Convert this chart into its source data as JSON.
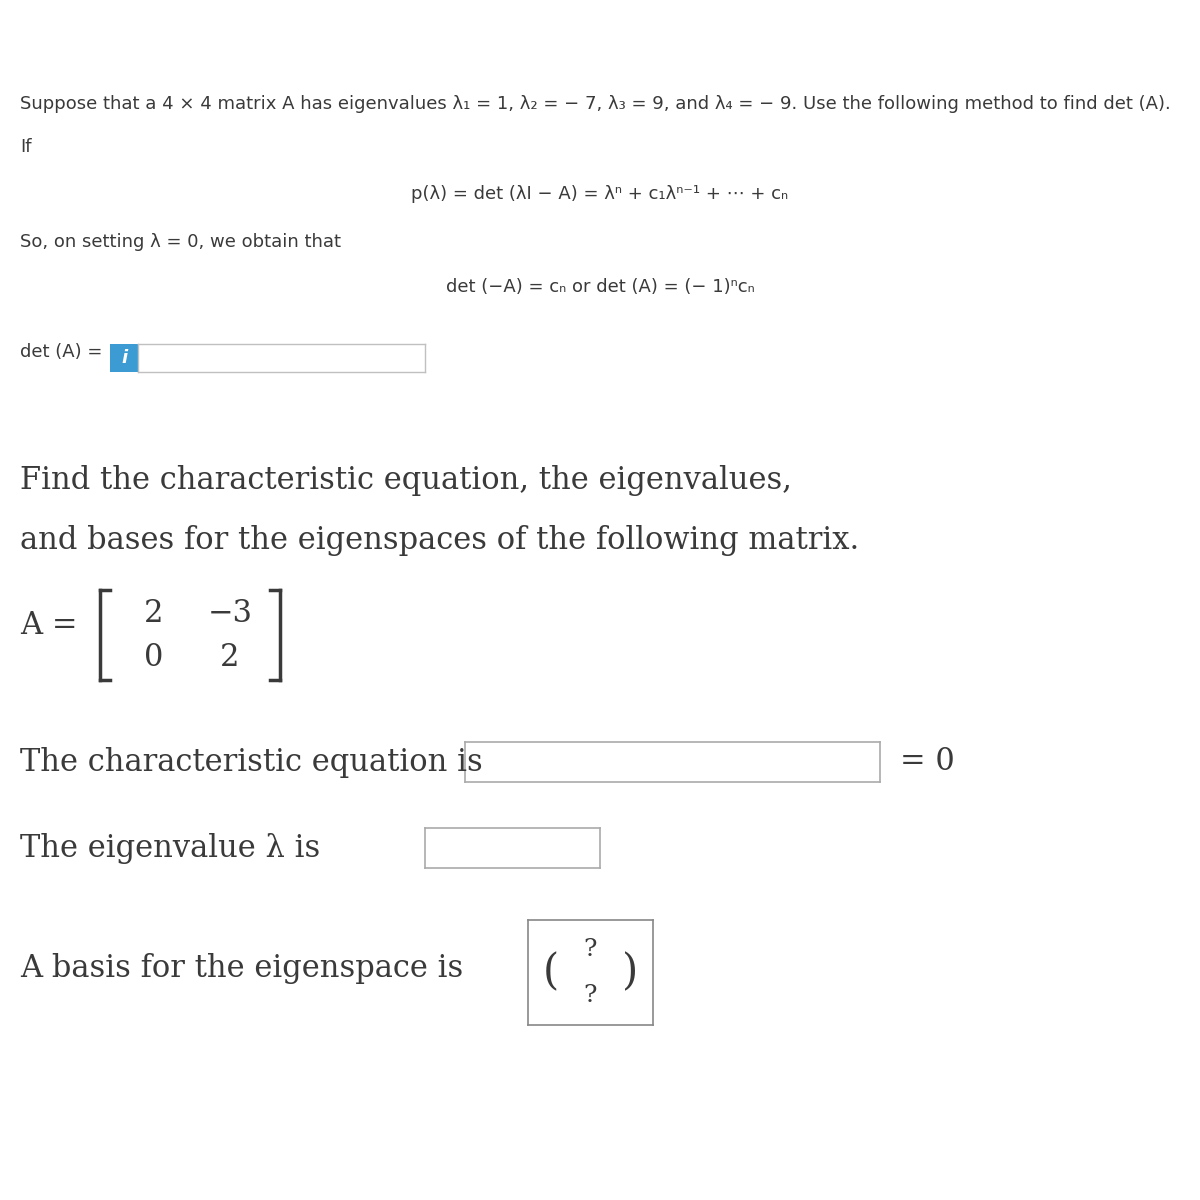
{
  "bg_color": "#ffffff",
  "text_color": "#3a3a3a",
  "line1": "Suppose that a 4 × 4 matrix A has eigenvalues λ₁ = 1, λ₂ = − 7, λ₃ = 9, and λ₄ = − 9. Use the following method to find det (A).",
  "line2": "If",
  "formula1": "p(λ) = det (λI − A) = λⁿ + c₁λⁿ⁻¹ + ⋯ + cₙ",
  "line3": "So, on setting λ = 0, we obtain that",
  "formula2": "det (−A) = cₙ or det (A) = (− 1)ⁿcₙ",
  "det_label": "det (A) = ",
  "det_box_char": "i",
  "det_box_color": "#3d9bd4",
  "det_box_text_color": "#ffffff",
  "section2_line1": "Find the characteristic equation, the eigenvalues,",
  "section2_line2": "and bases for the eigenspaces of the following matrix.",
  "matrix_label": "A =",
  "matrix_row1_c1": "2",
  "matrix_row1_c2": "−3",
  "matrix_row2_c1": "0",
  "matrix_row2_c2": "2",
  "char_eq_label": "The characteristic equation is",
  "char_eq_suffix": "= 0",
  "eigenval_label": "The eigenvalue λ is",
  "basis_label": "A basis for the eigenspace is",
  "q1": "?",
  "q2": "?",
  "fs_body": 13,
  "fs_formula": 13,
  "fs_section2": 22,
  "fs_matrix": 22
}
